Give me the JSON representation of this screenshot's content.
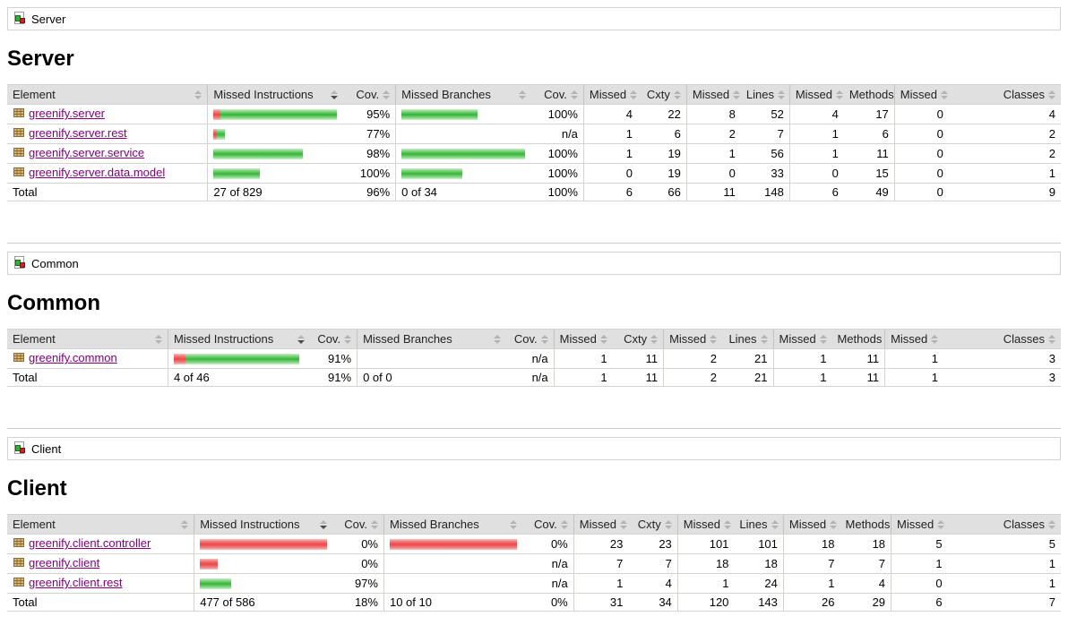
{
  "colors": {
    "green_bar": "#39b339",
    "red_bar": "#ee4646",
    "header_bg": "#e0e0e0",
    "table_border": "#d6d3ce",
    "link": "#800080"
  },
  "icons": {
    "breadcrumb_icon": "group-icon",
    "row_icon": "package-icon",
    "sort_icon": "sort-updown-icon"
  },
  "sections": [
    {
      "breadcrumb": "Server",
      "title": "Server",
      "columns": [
        "Element",
        "Missed Instructions",
        "Cov.",
        "Missed Branches",
        "Cov.",
        "Missed",
        "Cxty",
        "Missed",
        "Lines",
        "Missed",
        "Methods",
        "Missed",
        "Classes"
      ],
      "sorted_column": "Missed Instructions",
      "rows": [
        {
          "name": "greenify.server",
          "instr": {
            "red": 8,
            "green": 130,
            "cov": "95%"
          },
          "branch": {
            "red": 0,
            "green": 85,
            "cov": "100%"
          },
          "counters": [
            "4",
            "22",
            "8",
            "52",
            "4",
            "17",
            "0",
            "4"
          ]
        },
        {
          "name": "greenify.server.rest",
          "instr": {
            "red": 4,
            "green": 9,
            "cov": "77%"
          },
          "branch": {
            "red": 0,
            "green": 0,
            "cov": "n/a"
          },
          "counters": [
            "1",
            "6",
            "2",
            "7",
            "1",
            "6",
            "0",
            "2"
          ]
        },
        {
          "name": "greenify.server.service",
          "instr": {
            "red": 0,
            "green": 100,
            "cov": "98%"
          },
          "branch": {
            "red": 0,
            "green": 138,
            "cov": "100%"
          },
          "counters": [
            "1",
            "19",
            "1",
            "56",
            "1",
            "11",
            "0",
            "2"
          ]
        },
        {
          "name": "greenify.server.data.model",
          "instr": {
            "red": 0,
            "green": 52,
            "cov": "100%"
          },
          "branch": {
            "red": 0,
            "green": 68,
            "cov": "100%"
          },
          "counters": [
            "0",
            "19",
            "0",
            "33",
            "0",
            "15",
            "0",
            "1"
          ]
        }
      ],
      "total": {
        "label": "Total",
        "instr_text": "27 of 829",
        "instr_cov": "96%",
        "branch_text": "0 of 34",
        "branch_cov": "100%",
        "counters": [
          "6",
          "66",
          "11",
          "148",
          "6",
          "49",
          "0",
          "9"
        ]
      }
    },
    {
      "breadcrumb": "Common",
      "title": "Common",
      "columns": [
        "Element",
        "Missed Instructions",
        "Cov.",
        "Missed Branches",
        "Cov.",
        "Missed",
        "Cxty",
        "Missed",
        "Lines",
        "Missed",
        "Methods",
        "Missed",
        "Classes"
      ],
      "sorted_column": "Missed Instructions",
      "rows": [
        {
          "name": "greenify.common",
          "instr": {
            "red": 13,
            "green": 127,
            "cov": "91%"
          },
          "branch": {
            "red": 0,
            "green": 0,
            "cov": "n/a"
          },
          "counters": [
            "1",
            "11",
            "2",
            "21",
            "1",
            "11",
            "1",
            "3"
          ]
        }
      ],
      "total": {
        "label": "Total",
        "instr_text": "4 of 46",
        "instr_cov": "91%",
        "branch_text": "0 of 0",
        "branch_cov": "n/a",
        "counters": [
          "1",
          "11",
          "2",
          "21",
          "1",
          "11",
          "1",
          "3"
        ]
      }
    },
    {
      "breadcrumb": "Client",
      "title": "Client",
      "columns": [
        "Element",
        "Missed Instructions",
        "Cov.",
        "Missed Branches",
        "Cov.",
        "Missed",
        "Cxty",
        "Missed",
        "Lines",
        "Missed",
        "Methods",
        "Missed",
        "Classes"
      ],
      "sorted_column": "Missed Instructions",
      "rows": [
        {
          "name": "greenify.client.controller",
          "instr": {
            "red": 143,
            "green": 0,
            "cov": "0%"
          },
          "branch": {
            "red": 145,
            "green": 0,
            "cov": "0%"
          },
          "counters": [
            "23",
            "23",
            "101",
            "101",
            "18",
            "18",
            "5",
            "5"
          ]
        },
        {
          "name": "greenify.client",
          "instr": {
            "red": 20,
            "green": 0,
            "cov": "0%"
          },
          "branch": {
            "red": 0,
            "green": 0,
            "cov": "n/a"
          },
          "counters": [
            "7",
            "7",
            "18",
            "18",
            "7",
            "7",
            "1",
            "1"
          ]
        },
        {
          "name": "greenify.client.rest",
          "instr": {
            "red": 0,
            "green": 35,
            "cov": "97%"
          },
          "branch": {
            "red": 0,
            "green": 0,
            "cov": "n/a"
          },
          "counters": [
            "1",
            "4",
            "1",
            "24",
            "1",
            "4",
            "0",
            "1"
          ]
        }
      ],
      "total": {
        "label": "Total",
        "instr_text": "477 of 586",
        "instr_cov": "18%",
        "branch_text": "10 of 10",
        "branch_cov": "0%",
        "counters": [
          "31",
          "34",
          "120",
          "143",
          "26",
          "29",
          "6",
          "7"
        ]
      }
    }
  ]
}
